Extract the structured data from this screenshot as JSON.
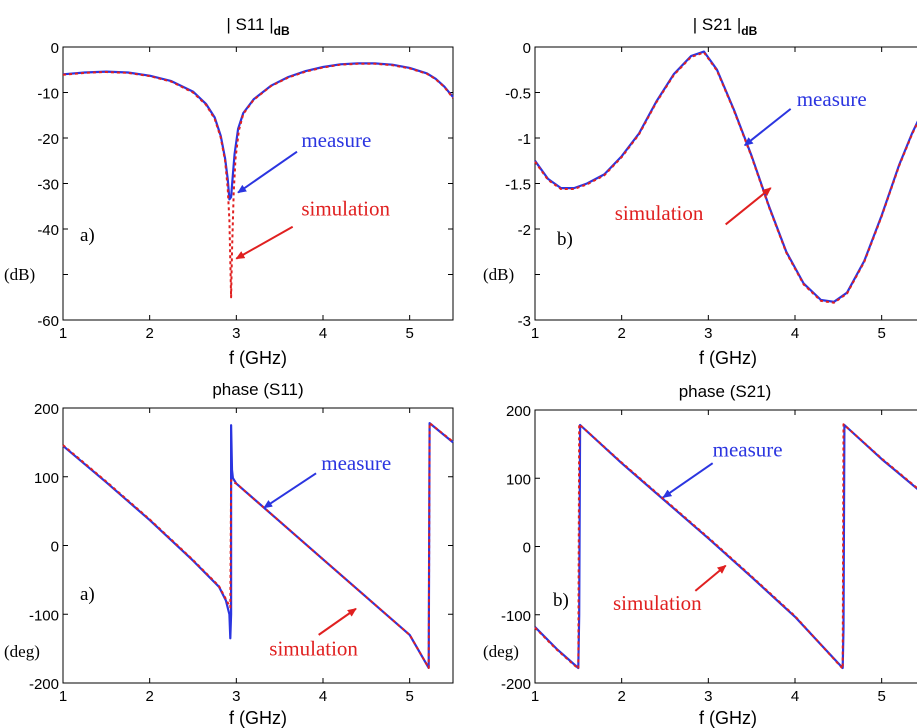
{
  "chart_data": [
    {
      "type": "line",
      "title_main": "| S11 |",
      "title_sub": "dB",
      "xlabel": "f (GHz)",
      "ylabel": "(dB)",
      "panel_label": "a)",
      "xlim": [
        1,
        5.5
      ],
      "ylim": [
        -60,
        0
      ],
      "xticks": [
        1,
        2,
        3,
        4,
        5
      ],
      "yticks": [
        0,
        -10,
        -20,
        -30,
        -40,
        -50,
        -60
      ],
      "ytick_labels": [
        "0",
        "-10",
        "-20",
        "-30",
        "-40",
        "",
        "-60"
      ],
      "grid": false,
      "colors": {
        "measure": "#2b35e0",
        "simulation": "#e02020"
      },
      "annotations": [
        {
          "text": "measure",
          "color": "#2b35e0",
          "text_at": [
            3.75,
            -22
          ],
          "arrow_from": [
            3.7,
            -23
          ],
          "arrow_to": [
            3.02,
            -32
          ]
        },
        {
          "text": "simulation",
          "color": "#e02020",
          "text_at": [
            3.75,
            -37
          ],
          "arrow_from": [
            3.65,
            -39.5
          ],
          "arrow_to": [
            3.0,
            -46.5
          ]
        }
      ],
      "series": [
        {
          "name": "measure",
          "style": "solid",
          "x": [
            1.0,
            1.25,
            1.5,
            1.75,
            2.0,
            2.25,
            2.5,
            2.65,
            2.75,
            2.82,
            2.87,
            2.9,
            2.92,
            2.94,
            2.96,
            2.98,
            3.02,
            3.08,
            3.2,
            3.4,
            3.6,
            3.8,
            4.0,
            4.2,
            4.4,
            4.6,
            4.8,
            5.0,
            5.2,
            5.3,
            5.4,
            5.5
          ],
          "y": [
            -6.0,
            -5.6,
            -5.4,
            -5.6,
            -6.3,
            -7.5,
            -9.8,
            -12.5,
            -15.5,
            -19.5,
            -24.5,
            -29.0,
            -33.5,
            -33.0,
            -28.0,
            -23.5,
            -18.0,
            -14.5,
            -11.5,
            -8.5,
            -6.6,
            -5.3,
            -4.4,
            -3.8,
            -3.6,
            -3.6,
            -3.9,
            -4.6,
            -5.8,
            -7.0,
            -8.7,
            -11.0
          ]
        },
        {
          "name": "simulation",
          "style": "dashed",
          "x": [
            1.0,
            1.25,
            1.5,
            1.75,
            2.0,
            2.25,
            2.5,
            2.65,
            2.75,
            2.82,
            2.87,
            2.9,
            2.92,
            2.93,
            2.94,
            2.95,
            2.97,
            2.99,
            3.03,
            3.08,
            3.2,
            3.4,
            3.6,
            3.8,
            4.0,
            4.2,
            4.4,
            4.6,
            4.8,
            5.0,
            5.2,
            5.3,
            5.4,
            5.5
          ],
          "y": [
            -6.1,
            -5.7,
            -5.5,
            -5.7,
            -6.4,
            -7.6,
            -10.0,
            -12.7,
            -15.8,
            -19.9,
            -25.0,
            -31.0,
            -38.0,
            -47.0,
            -55.0,
            -45.0,
            -32.0,
            -24.5,
            -18.3,
            -14.7,
            -11.6,
            -8.6,
            -6.7,
            -5.4,
            -4.5,
            -3.9,
            -3.7,
            -3.7,
            -4.0,
            -4.7,
            -5.9,
            -7.1,
            -8.8,
            -11.2
          ]
        }
      ]
    },
    {
      "type": "line",
      "title_main": "| S21 |",
      "title_sub": "dB",
      "xlabel": "f (GHz)",
      "ylabel": "(dB)",
      "panel_label": "b)",
      "xlim": [
        1,
        5.5
      ],
      "ylim": [
        -3,
        0
      ],
      "xticks": [
        1,
        2,
        3,
        4,
        5
      ],
      "yticks": [
        0,
        -0.5,
        -1,
        -1.5,
        -2,
        -2.5,
        -3
      ],
      "ytick_labels": [
        "0",
        "-0.5",
        "-1",
        "-1.5",
        "-2",
        "",
        "-3"
      ],
      "grid": false,
      "colors": {
        "measure": "#2b35e0",
        "simulation": "#e02020"
      },
      "annotations": [
        {
          "text": "measure",
          "color": "#2b35e0",
          "text_at": [
            4.02,
            -0.65
          ],
          "arrow_from": [
            3.95,
            -0.68
          ],
          "arrow_to": [
            3.42,
            -1.08
          ]
        },
        {
          "text": "simulation",
          "color": "#e02020",
          "text_at": [
            1.92,
            -1.9
          ],
          "arrow_from": [
            3.2,
            -1.95
          ],
          "arrow_to": [
            3.72,
            -1.55
          ]
        }
      ],
      "series": [
        {
          "name": "measure",
          "style": "solid",
          "x": [
            1.0,
            1.15,
            1.3,
            1.45,
            1.6,
            1.8,
            2.0,
            2.2,
            2.4,
            2.6,
            2.8,
            2.95,
            3.1,
            3.3,
            3.5,
            3.7,
            3.9,
            4.1,
            4.3,
            4.45,
            4.6,
            4.8,
            5.0,
            5.2,
            5.35,
            5.5
          ],
          "y": [
            -1.25,
            -1.45,
            -1.55,
            -1.55,
            -1.5,
            -1.4,
            -1.2,
            -0.95,
            -0.6,
            -0.3,
            -0.1,
            -0.05,
            -0.25,
            -0.7,
            -1.2,
            -1.75,
            -2.25,
            -2.6,
            -2.78,
            -2.8,
            -2.7,
            -2.35,
            -1.85,
            -1.3,
            -0.95,
            -0.65
          ]
        },
        {
          "name": "simulation",
          "style": "dashed",
          "x": [
            1.0,
            1.15,
            1.3,
            1.45,
            1.6,
            1.8,
            2.0,
            2.2,
            2.4,
            2.6,
            2.8,
            2.95,
            3.1,
            3.3,
            3.5,
            3.7,
            3.9,
            4.1,
            4.3,
            4.45,
            4.6,
            4.8,
            5.0,
            5.2,
            5.35,
            5.5
          ],
          "y": [
            -1.26,
            -1.46,
            -1.56,
            -1.56,
            -1.51,
            -1.41,
            -1.21,
            -0.96,
            -0.61,
            -0.31,
            -0.11,
            -0.06,
            -0.26,
            -0.71,
            -1.21,
            -1.76,
            -2.26,
            -2.61,
            -2.79,
            -2.81,
            -2.71,
            -2.36,
            -1.86,
            -1.31,
            -0.96,
            -0.66
          ]
        }
      ]
    },
    {
      "type": "line",
      "title_main": "phase (S11)",
      "title_sub": "",
      "xlabel": "f (GHz)",
      "ylabel": "(deg)",
      "panel_label": "a)",
      "xlim": [
        1,
        5.5
      ],
      "ylim": [
        -200,
        200
      ],
      "xticks": [
        1,
        2,
        3,
        4,
        5
      ],
      "yticks": [
        200,
        100,
        0,
        -100,
        -200
      ],
      "ytick_labels": [
        "200",
        "100",
        "0",
        "-100",
        "-200"
      ],
      "grid": false,
      "colors": {
        "measure": "#2b35e0",
        "simulation": "#e02020"
      },
      "annotations": [
        {
          "text": "measure",
          "color": "#2b35e0",
          "text_at": [
            3.98,
            110
          ],
          "arrow_from": [
            3.92,
            105
          ],
          "arrow_to": [
            3.32,
            55
          ]
        },
        {
          "text": "simulation",
          "color": "#e02020",
          "text_at": [
            3.38,
            -160
          ],
          "arrow_from": [
            3.95,
            -130
          ],
          "arrow_to": [
            4.38,
            -92
          ]
        }
      ],
      "series": [
        {
          "name": "measure",
          "style": "solid",
          "x": [
            1.0,
            1.5,
            2.0,
            2.5,
            2.8,
            2.88,
            2.92,
            2.93,
            2.94,
            2.94,
            2.95,
            2.96,
            3.0,
            3.5,
            4.0,
            4.5,
            5.0,
            5.22,
            5.23,
            5.5
          ],
          "y": [
            145,
            92,
            37,
            -22,
            -60,
            -80,
            -100,
            -135,
            -100,
            175,
            110,
            98,
            90,
            35,
            -20,
            -75,
            -130,
            -178,
            178,
            150
          ]
        },
        {
          "name": "simulation",
          "style": "dashed",
          "x": [
            1.0,
            1.5,
            2.0,
            2.5,
            2.8,
            2.88,
            2.93,
            2.94,
            2.95,
            3.0,
            3.5,
            4.0,
            4.5,
            5.0,
            5.22,
            5.23,
            5.5
          ],
          "y": [
            146,
            93,
            38,
            -21,
            -59,
            -78,
            -90,
            95,
            93,
            90,
            35,
            -20,
            -75,
            -130,
            -178,
            178,
            151
          ]
        }
      ]
    },
    {
      "type": "line",
      "title_main": "phase (S21)",
      "title_sub": "",
      "xlabel": "f (GHz)",
      "ylabel": "(deg)",
      "panel_label": "b)",
      "xlim": [
        1,
        5.5
      ],
      "ylim": [
        -200,
        200
      ],
      "xticks": [
        1,
        2,
        3,
        4,
        5
      ],
      "yticks": [
        200,
        100,
        0,
        -100,
        -200
      ],
      "ytick_labels": [
        "200",
        "100",
        "0",
        "-100",
        "-200"
      ],
      "grid": false,
      "colors": {
        "measure": "#2b35e0",
        "simulation": "#e02020"
      },
      "annotations": [
        {
          "text": "measure",
          "color": "#2b35e0",
          "text_at": [
            3.05,
            132
          ],
          "arrow_from": [
            3.05,
            122
          ],
          "arrow_to": [
            2.48,
            72
          ]
        },
        {
          "text": "simulation",
          "color": "#e02020",
          "text_at": [
            1.9,
            -93
          ],
          "arrow_from": [
            2.85,
            -65
          ],
          "arrow_to": [
            3.2,
            -28
          ]
        }
      ],
      "series": [
        {
          "name": "measure",
          "style": "solid",
          "x": [
            1.0,
            1.25,
            1.5,
            1.51,
            1.52,
            2.0,
            2.5,
            3.0,
            3.5,
            4.0,
            4.55,
            4.56,
            4.57,
            5.0,
            5.5
          ],
          "y": [
            -118,
            -150,
            -178,
            -100,
            178,
            122,
            67,
            12,
            -45,
            -103,
            -178,
            -120,
            178,
            128,
            75
          ]
        },
        {
          "name": "simulation",
          "style": "dashed",
          "x": [
            1.0,
            1.25,
            1.5,
            1.51,
            2.0,
            2.5,
            3.0,
            3.5,
            4.0,
            4.55,
            4.56,
            5.0,
            5.5
          ],
          "y": [
            -119,
            -151,
            -179,
            179,
            123,
            68,
            13,
            -44,
            -102,
            -179,
            179,
            129,
            76
          ]
        }
      ]
    }
  ]
}
